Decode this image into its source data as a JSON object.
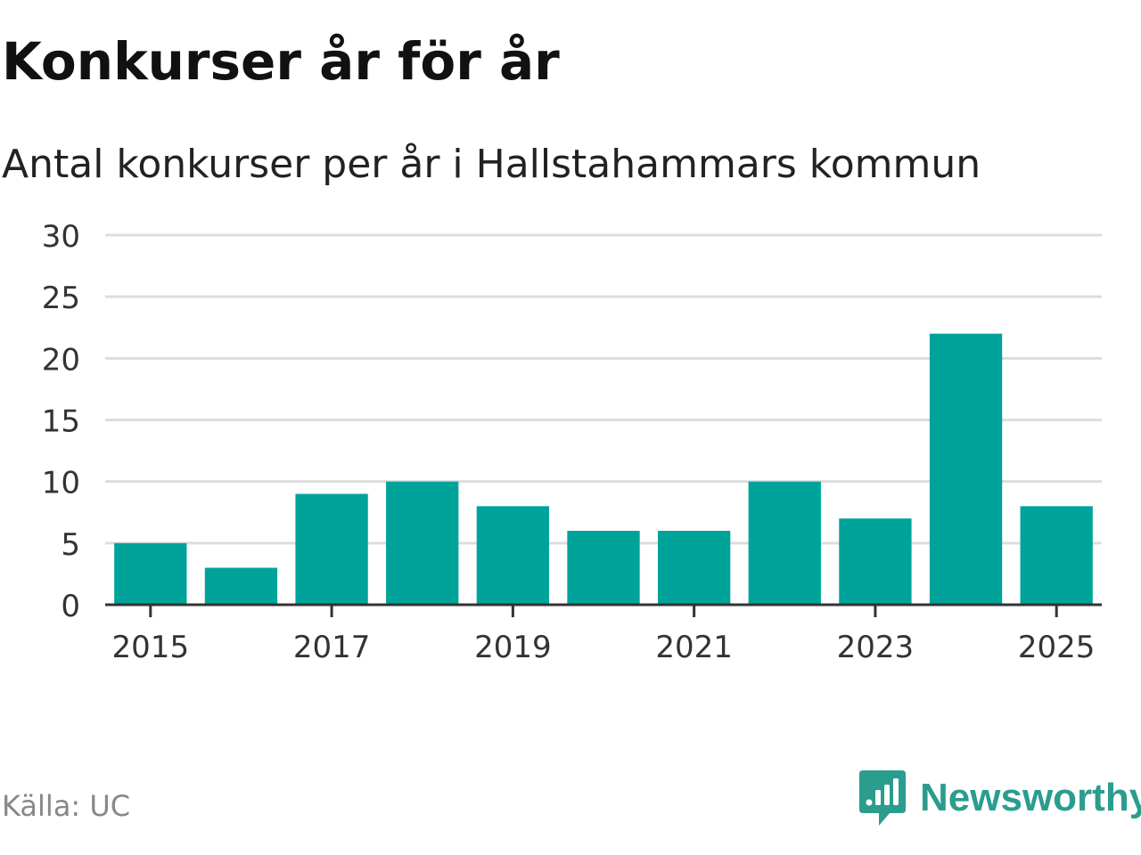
{
  "header": {
    "title": "Konkurser år för år",
    "subtitle": "Antal konkurser per år i Hallstahammars kommun"
  },
  "footer": {
    "source": "Källa: UC",
    "brand": "Newsworthy",
    "brand_icon": "newsworthy-logo-icon"
  },
  "colors": {
    "bar": "#00a39a",
    "brand": "#2a9d8f",
    "grid": "#dddddd",
    "axis": "#333333",
    "tick_text": "#333333"
  },
  "chart_data": {
    "type": "bar",
    "title": "Konkurser år för år",
    "subtitle": "Antal konkurser per år i Hallstahammars kommun",
    "categories": [
      "2015",
      "2016",
      "2017",
      "2018",
      "2019",
      "2020",
      "2021",
      "2022",
      "2023",
      "2024",
      "2025"
    ],
    "values": [
      5,
      3,
      9,
      10,
      8,
      6,
      6,
      10,
      7,
      22,
      8
    ],
    "x_tick_labels": [
      "2015",
      "2017",
      "2019",
      "2021",
      "2023",
      "2025"
    ],
    "y_ticks": [
      0,
      5,
      10,
      15,
      20,
      25,
      30
    ],
    "ylim": [
      0,
      30
    ],
    "grid": true,
    "legend": "none",
    "xlabel": "",
    "ylabel": ""
  }
}
